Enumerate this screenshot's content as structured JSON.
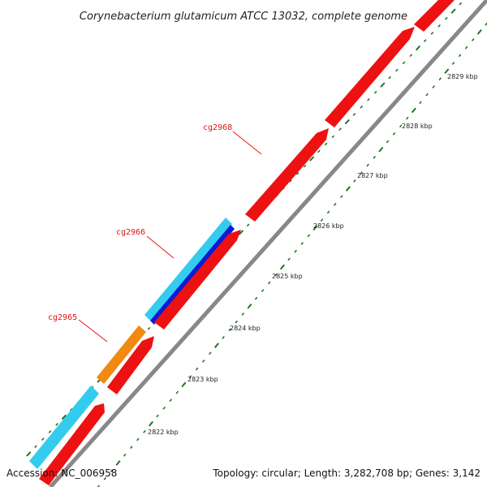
{
  "title": "Corynebacterium glutamicum ATCC 13032, complete genome",
  "footer": {
    "accession": "Accession: NC_006958",
    "summary": "Topology: circular; Length: 3,282,708 bp; Genes: 3,142"
  },
  "colors": {
    "background": "#ffffff",
    "backbone": "#888888",
    "forward_genes": "#ee1111",
    "reverse_genes_light": "#33ccee",
    "reverse_gene_blue": "#0a1ad8",
    "reverse_gene_orange": "#f08a10",
    "tick_marks": "#227722",
    "gene_labels": "#dd1111"
  },
  "gene_labels": [
    "cg2968",
    "cg2966",
    "cg2965"
  ],
  "scale_labels": [
    "2822 kbp",
    "2823 kbp",
    "2824 kbp",
    "2825 kbp",
    "2826 kbp",
    "2827 kbp",
    "2828 kbp",
    "2829 kbp"
  ]
}
